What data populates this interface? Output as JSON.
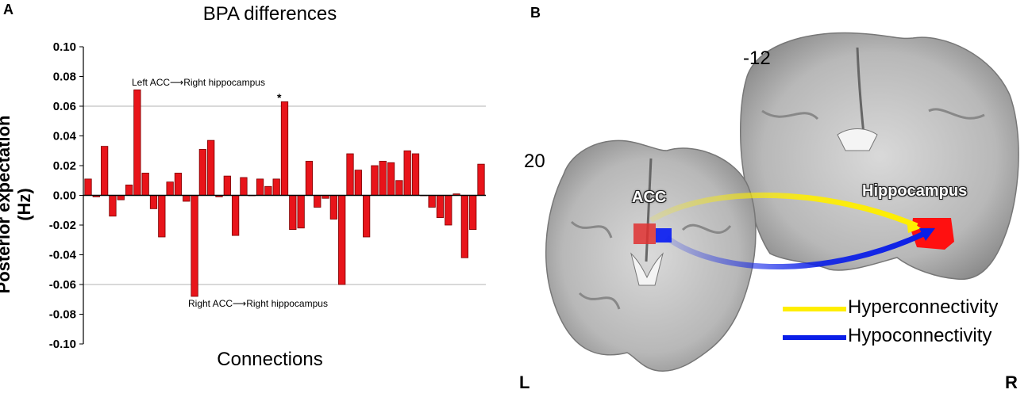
{
  "panels": {
    "a": "A",
    "b": "B"
  },
  "chart_data": {
    "type": "bar",
    "title": "BPA differences",
    "xlabel": "Connections",
    "ylabel": "Posterior expectation (Hz)",
    "ylim": [
      -0.1,
      0.1
    ],
    "yticks": [
      "0.10",
      "0.08",
      "0.06",
      "0.04",
      "0.02",
      "0.00",
      "-0.02",
      "-0.04",
      "-0.06",
      "-0.08",
      "-0.10"
    ],
    "gridlines": [
      0.06,
      -0.06
    ],
    "bar_color": "#e8141a",
    "values": [
      0.011,
      -0.001,
      0.033,
      -0.014,
      -0.003,
      0.007,
      0.071,
      0.015,
      -0.009,
      -0.028,
      0.009,
      0.015,
      -0.004,
      -0.068,
      0.031,
      0.037,
      -0.001,
      0.013,
      -0.027,
      0.012,
      0.0,
      0.011,
      0.006,
      0.011,
      0.063,
      -0.023,
      -0.022,
      0.023,
      -0.008,
      -0.002,
      -0.016,
      -0.06,
      0.028,
      0.017,
      -0.028,
      0.02,
      0.023,
      0.022,
      0.01,
      0.03,
      0.028,
      0.0,
      -0.008,
      -0.015,
      -0.02,
      0.001,
      -0.042,
      -0.023,
      0.021
    ],
    "annotations": [
      {
        "text": "Left ACC⟶Right hippocampus"
      },
      {
        "text": "Right ACC⟶Right hippocampus"
      },
      {
        "text": "*"
      }
    ]
  },
  "brain": {
    "slice_front": "-12",
    "slice_back": "20",
    "region_acc": "ACC",
    "region_hippo": "Hippocampus",
    "legend": [
      {
        "label": "Hyperconnectivity",
        "color": "#ffee00"
      },
      {
        "label": "Hypoconnectivity",
        "color": "#0a1ee8"
      }
    ],
    "left_label": "L",
    "right_label": "R"
  }
}
